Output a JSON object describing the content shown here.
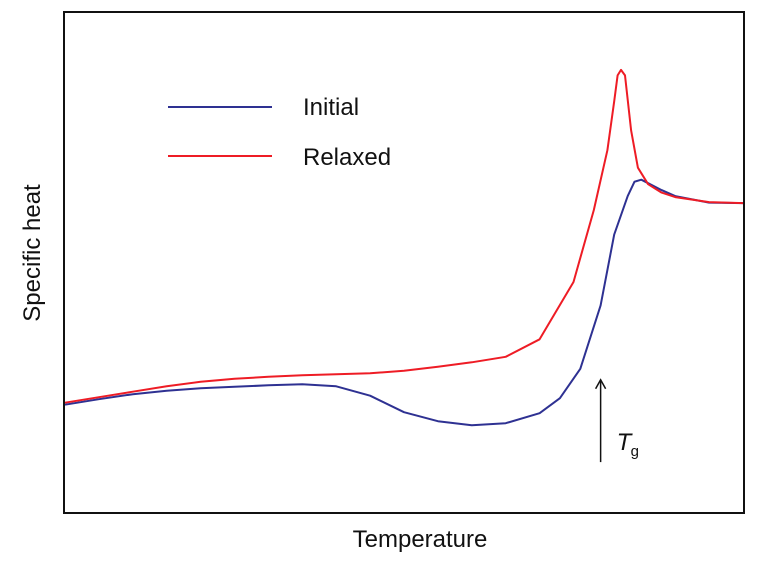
{
  "chart_data": {
    "type": "line",
    "title": "",
    "xlabel": "Temperature",
    "ylabel": "Specific heat",
    "xlim": [
      0,
      100
    ],
    "ylim": [
      0,
      100
    ],
    "x_ticks": [],
    "y_ticks": [],
    "grid": false,
    "legend_position": "top-left",
    "series": [
      {
        "name": "Initial",
        "color": "#2e3192",
        "points": [
          [
            0,
            21.5
          ],
          [
            5,
            22.6
          ],
          [
            10,
            23.6
          ],
          [
            15,
            24.3
          ],
          [
            20,
            24.8
          ],
          [
            25,
            25.1
          ],
          [
            30,
            25.4
          ],
          [
            35,
            25.6
          ],
          [
            40,
            25.2
          ],
          [
            45,
            23.3
          ],
          [
            50,
            20.0
          ],
          [
            55,
            18.2
          ],
          [
            60,
            17.4
          ],
          [
            65,
            17.8
          ],
          [
            70,
            19.8
          ],
          [
            73,
            22.8
          ],
          [
            76,
            28.7
          ],
          [
            79,
            41.4
          ],
          [
            81,
            55.6
          ],
          [
            83,
            63.3
          ],
          [
            84,
            66.2
          ],
          [
            85,
            66.6
          ],
          [
            86,
            65.9
          ],
          [
            88,
            64.5
          ],
          [
            90,
            63.3
          ],
          [
            95,
            62.0
          ],
          [
            100,
            61.9
          ]
        ]
      },
      {
        "name": "Relaxed",
        "color": "#ee1c25",
        "points": [
          [
            0,
            21.9
          ],
          [
            5,
            23.0
          ],
          [
            10,
            24.1
          ],
          [
            15,
            25.2
          ],
          [
            20,
            26.1
          ],
          [
            25,
            26.7
          ],
          [
            30,
            27.1
          ],
          [
            35,
            27.4
          ],
          [
            40,
            27.6
          ],
          [
            45,
            27.8
          ],
          [
            50,
            28.3
          ],
          [
            55,
            29.1
          ],
          [
            60,
            30.0
          ],
          [
            65,
            31.1
          ],
          [
            70,
            34.6
          ],
          [
            75,
            46.1
          ],
          [
            78,
            60.5
          ],
          [
            80,
            72.5
          ],
          [
            81,
            82.3
          ],
          [
            81.5,
            87.5
          ],
          [
            82,
            88.6
          ],
          [
            82.6,
            87.5
          ],
          [
            83.5,
            76.5
          ],
          [
            84.5,
            69.0
          ],
          [
            86,
            65.7
          ],
          [
            88,
            64.0
          ],
          [
            90,
            63.1
          ],
          [
            95,
            62.1
          ],
          [
            100,
            61.9
          ]
        ]
      }
    ],
    "annotations": [
      {
        "text": "T",
        "subscript": "g",
        "type": "arrow",
        "x": 79,
        "y_from": 10,
        "y_to": 26.5
      }
    ]
  }
}
